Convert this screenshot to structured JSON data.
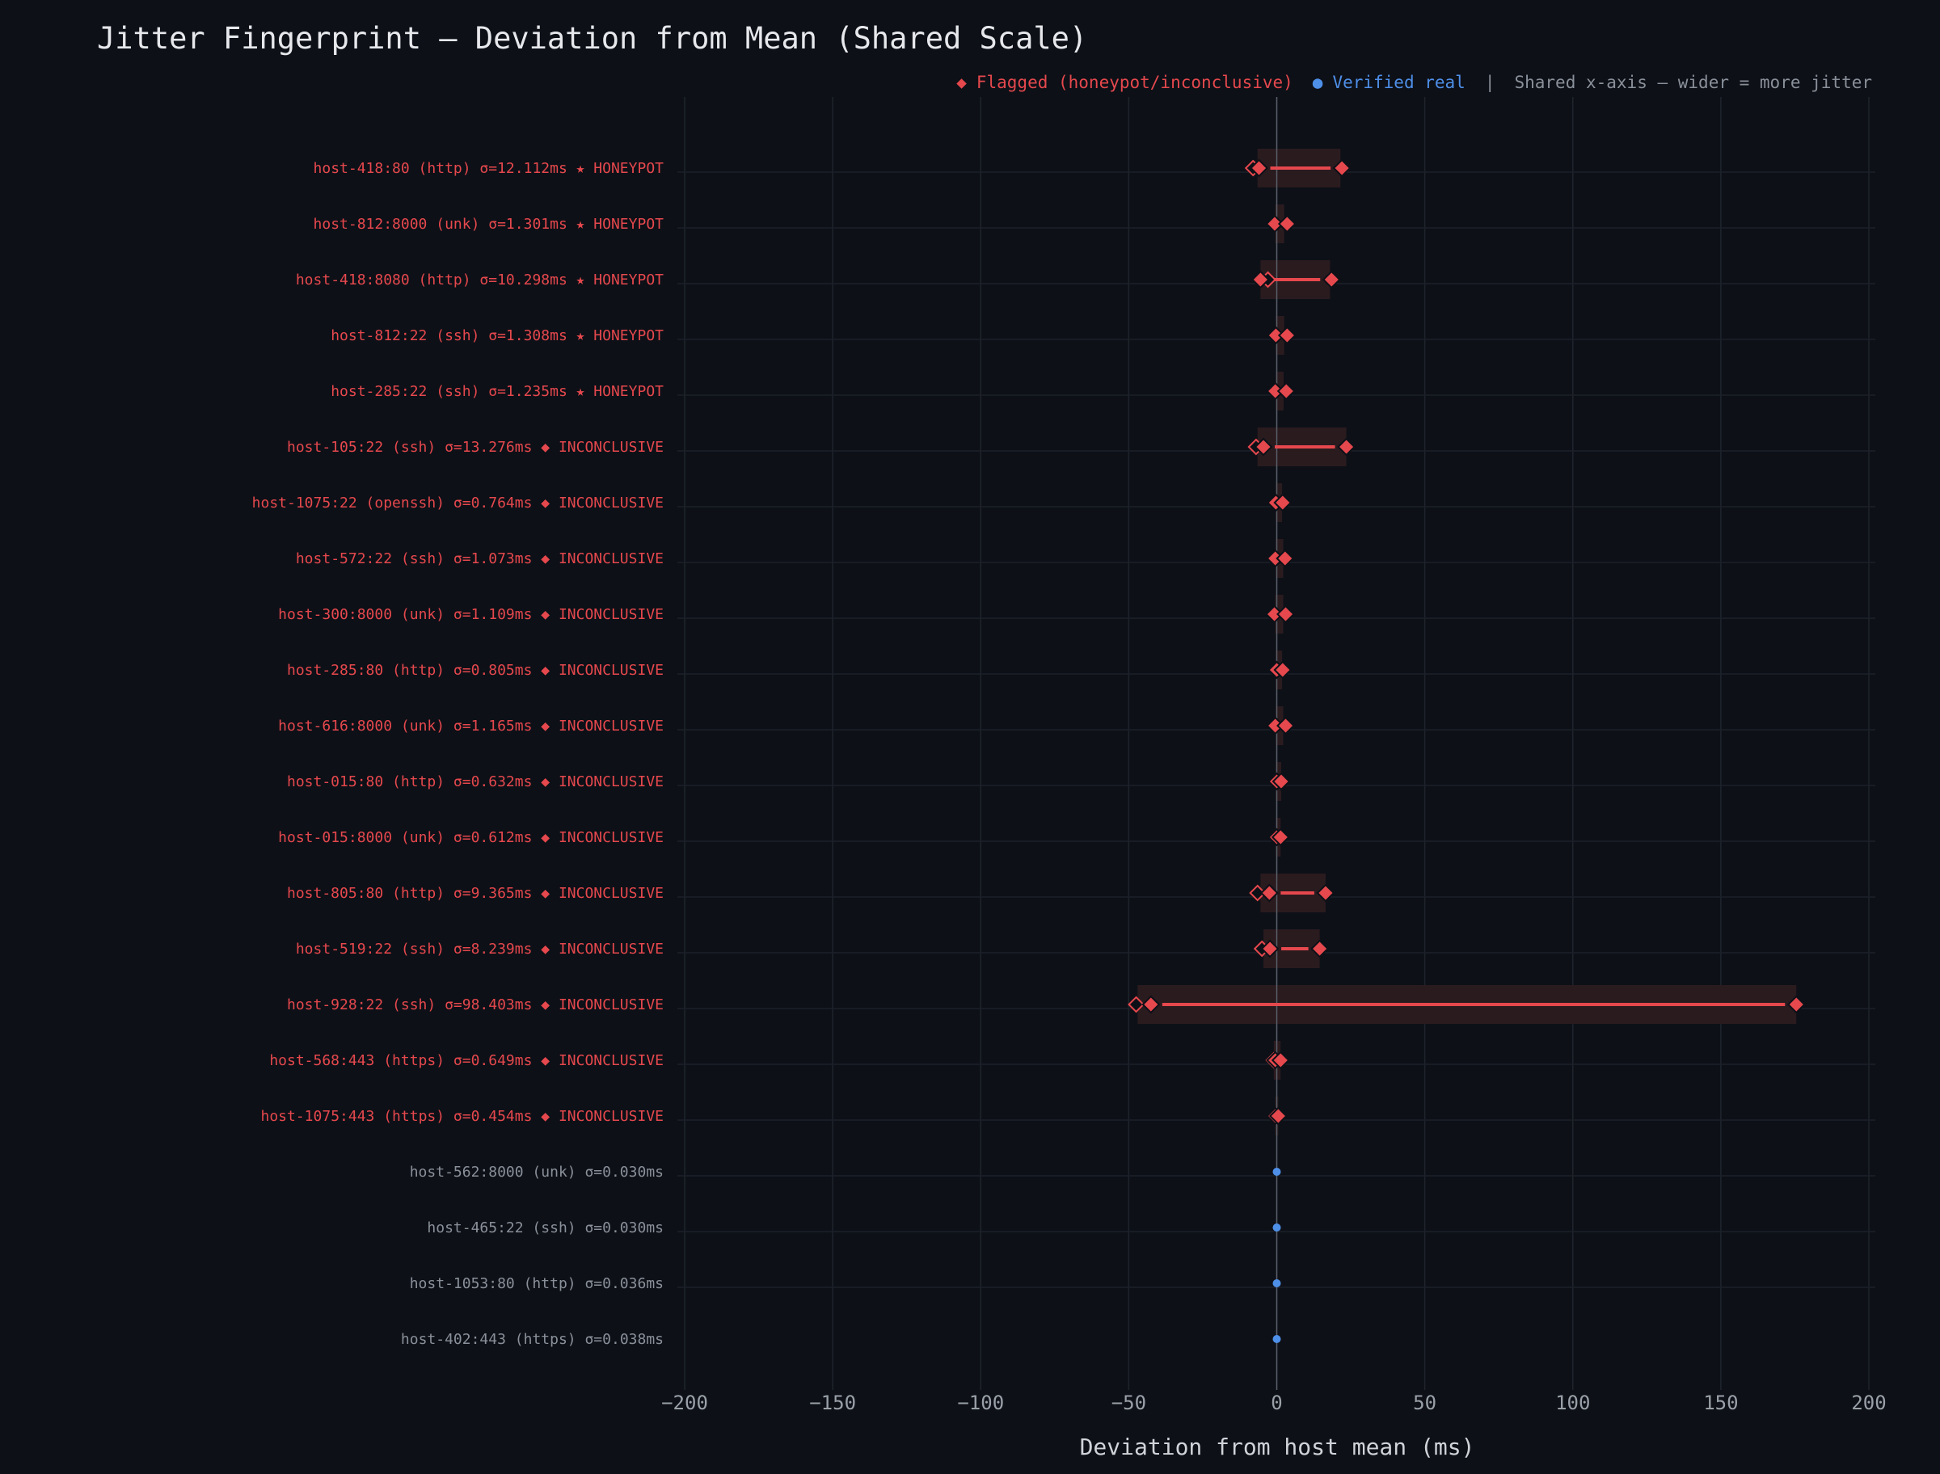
{
  "chart_data": {
    "type": "scatter",
    "title": "Jitter Fingerprint — Deviation from Mean (Shared Scale)",
    "xlabel": "Deviation from host mean (ms)",
    "xlim": [
      -200,
      200
    ],
    "x_ticks": [
      -200,
      -150,
      -100,
      -50,
      0,
      50,
      100,
      150,
      200
    ],
    "x_tick_labels": [
      "−200",
      "−150",
      "−100",
      "−50",
      "0",
      "50",
      "100",
      "150",
      "200"
    ],
    "grid": true,
    "legend": {
      "placement": "top-right",
      "flagged_marker": "◆",
      "flagged_label": "Flagged (honeypot/inconclusive)",
      "verified_marker": "●",
      "verified_label": "Verified real",
      "separator": "|",
      "note": "Shared x-axis — wider = more jitter"
    },
    "colors": {
      "flagged": "#e5484d",
      "verified": "#4e8fe8",
      "verified_label": "#8a9099",
      "background": "#0d1017",
      "band": "#2a1b1f"
    },
    "rows": [
      {
        "label": "host-418:80  (http)  σ=12.112ms ★ HONEYPOT",
        "status": "flagged",
        "min": -6,
        "max": 22,
        "band": [
          -6.5,
          21.5
        ],
        "extra": [
          -8
        ]
      },
      {
        "label": "host-812:8000  (unk)  σ=1.301ms ★ HONEYPOT",
        "status": "flagged",
        "min": -0.7,
        "max": 3.5,
        "band": [
          -0.5,
          2.5
        ],
        "extra": [
          3.5
        ]
      },
      {
        "label": "host-418:8080  (http)  σ=10.298ms ★ HONEYPOT",
        "status": "flagged",
        "min": -5.5,
        "max": 18.5,
        "band": [
          -5.5,
          18
        ],
        "extra": [
          -3
        ]
      },
      {
        "label": "host-812:22  (ssh)  σ=1.308ms ★ HONEYPOT",
        "status": "flagged",
        "min": -0.3,
        "max": 3.5,
        "band": [
          -0.3,
          2.5
        ],
        "extra": [
          3.5
        ]
      },
      {
        "label": "host-285:22  (ssh)  σ=1.235ms ★ HONEYPOT",
        "status": "flagged",
        "min": -0.5,
        "max": 3.2,
        "band": [
          -0.3,
          2.3
        ],
        "extra": [
          3.2
        ]
      },
      {
        "label": "host-105:22  (ssh)  σ=13.276ms ◆ INCONCLUSIVE",
        "status": "flagged",
        "min": -4.5,
        "max": 23.5,
        "band": [
          -6.5,
          23.5
        ],
        "extra": [
          -7
        ]
      },
      {
        "label": "host-1075:22  (openssh)  σ=0.764ms ◆ INCONCLUSIVE",
        "status": "flagged",
        "min": -0.3,
        "max": 2,
        "band": [
          -0.3,
          1.8
        ],
        "extra": [
          1.8
        ]
      },
      {
        "label": "host-572:22  (ssh)  σ=1.073ms ◆ INCONCLUSIVE",
        "status": "flagged",
        "min": -0.5,
        "max": 2.8,
        "band": [
          -0.3,
          2.2
        ],
        "extra": [
          2.8
        ]
      },
      {
        "label": "host-300:8000  (unk)  σ=1.109ms ◆ INCONCLUSIVE",
        "status": "flagged",
        "min": -0.8,
        "max": 3,
        "band": [
          -0.5,
          2.2
        ],
        "extra": [
          3
        ]
      },
      {
        "label": "host-285:80  (http)  σ=0.805ms ◆ INCONCLUSIVE",
        "status": "flagged",
        "min": 0,
        "max": 2,
        "band": [
          -0.3,
          1.8
        ],
        "extra": [
          2
        ]
      },
      {
        "label": "host-616:8000  (unk)  σ=1.165ms ◆ INCONCLUSIVE",
        "status": "flagged",
        "min": -0.5,
        "max": 3,
        "band": [
          -0.3,
          2.2
        ],
        "extra": [
          3
        ]
      },
      {
        "label": "host-015:80  (http)  σ=0.632ms ◆ INCONCLUSIVE",
        "status": "flagged",
        "min": 0,
        "max": 1.5,
        "band": [
          -0.3,
          1.5
        ],
        "extra": [
          1.5
        ]
      },
      {
        "label": "host-015:8000  (unk)  σ=0.612ms ◆ INCONCLUSIVE",
        "status": "flagged",
        "min": 0,
        "max": 1.3,
        "band": [
          -0.3,
          1.3
        ],
        "extra": [
          1.3
        ]
      },
      {
        "label": "host-805:80  (http)  σ=9.365ms ◆ INCONCLUSIVE",
        "status": "flagged",
        "min": -2.5,
        "max": 16.5,
        "band": [
          -5.5,
          16.5
        ],
        "extra": [
          -6.5
        ]
      },
      {
        "label": "host-519:22  (ssh)  σ=8.239ms ◆ INCONCLUSIVE",
        "status": "flagged",
        "min": -2.3,
        "max": 14.5,
        "band": [
          -4.5,
          14.5
        ],
        "extra": [
          -5
        ]
      },
      {
        "label": "host-928:22  (ssh)  σ=98.403ms ◆ INCONCLUSIVE",
        "status": "flagged",
        "min": -42.5,
        "max": 175.5,
        "band": [
          -47,
          175.5
        ],
        "extra": [
          -47.5
        ]
      },
      {
        "label": "host-568:443  (https)  σ=0.649ms ◆ INCONCLUSIVE",
        "status": "flagged",
        "min": -0.5,
        "max": 1.3,
        "band": [
          -1,
          1.3
        ],
        "extra": [
          -1
        ]
      },
      {
        "label": "host-1075:443  (https)  σ=0.454ms ◆ INCONCLUSIVE",
        "status": "flagged",
        "min": -0.5,
        "max": 0.5,
        "band": [
          -0.5,
          0.5
        ],
        "extra": []
      },
      {
        "label": "host-562:8000  (unk)  σ=0.030ms",
        "status": "verified",
        "min": 0,
        "max": 0,
        "band": null,
        "extra": []
      },
      {
        "label": "host-465:22  (ssh)  σ=0.030ms",
        "status": "verified",
        "min": 0,
        "max": 0,
        "band": null,
        "extra": []
      },
      {
        "label": "host-1053:80  (http)  σ=0.036ms",
        "status": "verified",
        "min": 0,
        "max": 0,
        "band": null,
        "extra": []
      },
      {
        "label": "host-402:443  (https)  σ=0.038ms",
        "status": "verified",
        "min": 0,
        "max": 0,
        "band": null,
        "extra": []
      }
    ]
  }
}
